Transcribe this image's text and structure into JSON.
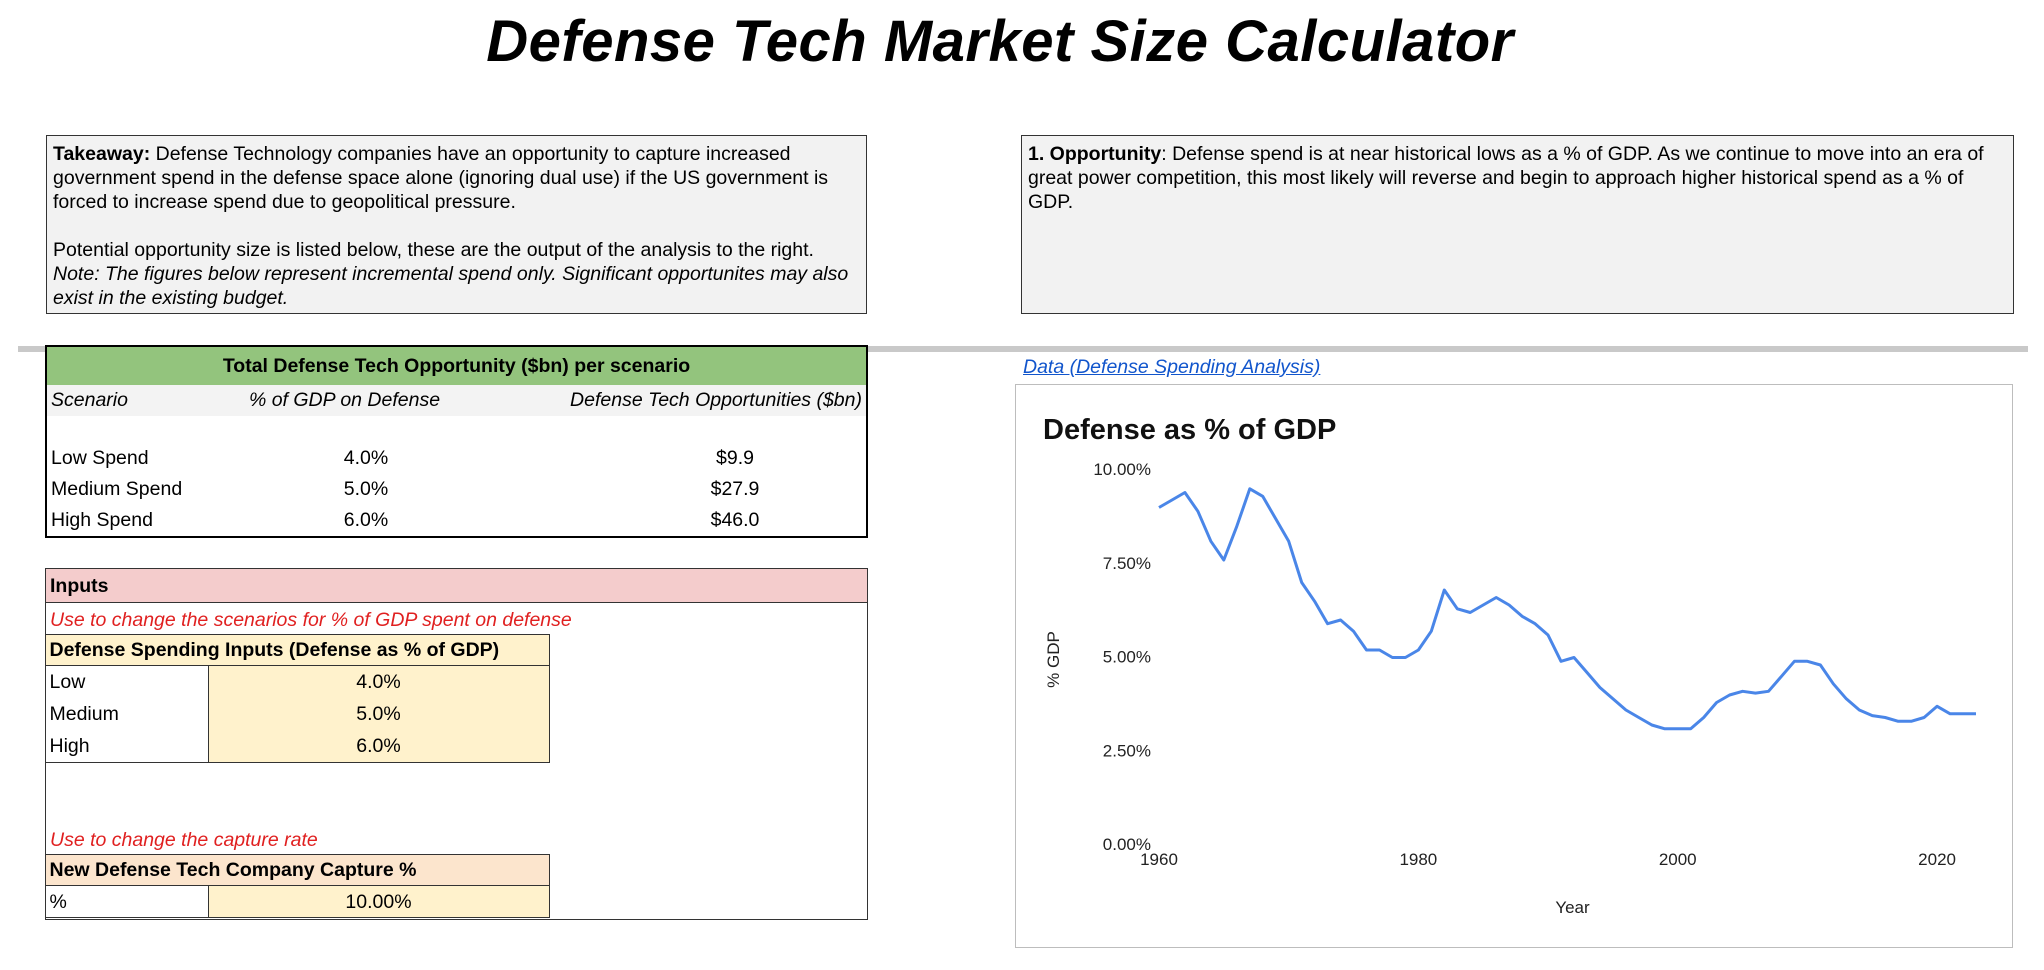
{
  "title": "Defense Tech Market Size Calculator",
  "takeaway": {
    "bold_label": "Takeaway:",
    "text": " Defense Technology companies have an opportunity to capture increased government spend in the defense space alone (ignoring dual use) if the US government is forced to increase spend due to geopolitical pressure.",
    "line2": "Potential opportunity size is listed below, these are the output of the analysis to the right.",
    "note": "Note: The figures below represent incremental spend only. Significant opportunites may also exist in the existing budget."
  },
  "opportunity": {
    "bold_label": "1. Opportunity",
    "text": ": Defense spend is at near historical lows as a % of GDP. As we continue to move into an era of great power competition, this most likely will reverse and begin to approach higher historical spend as a % of GDP."
  },
  "opp_table": {
    "header": "Total Defense Tech Opportunity ($bn) per scenario",
    "columns": [
      "Scenario",
      "% of GDP on Defense",
      "Defense Tech Opportunities ($bn)"
    ],
    "rows": [
      {
        "scenario": "Low Spend",
        "pct": "4.0%",
        "opp": "$9.9"
      },
      {
        "scenario": "Medium Spend",
        "pct": "5.0%",
        "opp": "$27.9"
      },
      {
        "scenario": "High Spend",
        "pct": "6.0%",
        "opp": "$46.0"
      }
    ]
  },
  "inputs": {
    "header": "Inputs",
    "note1": "Use to change the scenarios for % of GDP spent on defense",
    "spending": {
      "header": "Defense Spending Inputs (Defense as % of GDP)",
      "rows": [
        {
          "label": "Low",
          "value": "4.0%"
        },
        {
          "label": "Medium",
          "value": "5.0%"
        },
        {
          "label": "High",
          "value": "6.0%"
        }
      ]
    },
    "note2": "Use to change the capture rate",
    "capture": {
      "header": "New Defense Tech Company Capture %",
      "label": "%",
      "value": "10.00%"
    }
  },
  "data_link": "Data (Defense Spending Analysis)",
  "colors": {
    "line": "#4a86e8",
    "green_header": "#93c47d",
    "pink_header": "#f4cccc",
    "input_fill": "#fff2cc",
    "red_note": "#e02020",
    "link": "#1155cc"
  },
  "chart_data": {
    "type": "line",
    "title": "Defense as % of GDP",
    "xlabel": "Year",
    "ylabel": "% GDP",
    "xlim": [
      1960,
      2023
    ],
    "ylim": [
      0,
      10
    ],
    "x_ticks": [
      "1960",
      "1980",
      "2000",
      "2020"
    ],
    "y_ticks": [
      "0.00%",
      "2.50%",
      "5.00%",
      "7.50%",
      "10.00%"
    ],
    "grid": false,
    "legend": "none",
    "series": [
      {
        "x": [
          1960,
          1961,
          1962,
          1963,
          1964,
          1965,
          1966,
          1967,
          1968,
          1969,
          1970,
          1971,
          1972,
          1973,
          1974,
          1975,
          1976,
          1977,
          1978,
          1979,
          1980,
          1981,
          1982,
          1983,
          1984,
          1985,
          1986,
          1987,
          1988,
          1989,
          1990,
          1991,
          1992,
          1993,
          1994,
          1995,
          1996,
          1997,
          1998,
          1999,
          2000,
          2001,
          2002,
          2003,
          2004,
          2005,
          2006,
          2007,
          2008,
          2009,
          2010,
          2011,
          2012,
          2013,
          2014,
          2015,
          2016,
          2017,
          2018,
          2019,
          2020,
          2021,
          2022,
          2023
        ],
        "values": [
          9.0,
          9.2,
          9.4,
          8.9,
          8.1,
          7.6,
          8.5,
          9.5,
          9.3,
          8.7,
          8.1,
          7.0,
          6.5,
          5.9,
          6.0,
          5.7,
          5.2,
          5.2,
          5.0,
          5.0,
          5.2,
          5.7,
          6.8,
          6.3,
          6.2,
          6.4,
          6.6,
          6.4,
          6.1,
          5.9,
          5.6,
          4.9,
          5.0,
          4.6,
          4.2,
          3.9,
          3.6,
          3.4,
          3.2,
          3.1,
          3.1,
          3.1,
          3.4,
          3.8,
          4.0,
          4.1,
          4.05,
          4.1,
          4.5,
          4.9,
          4.9,
          4.8,
          4.3,
          3.9,
          3.6,
          3.45,
          3.4,
          3.3,
          3.3,
          3.4,
          3.7,
          3.5,
          3.5,
          3.5
        ]
      }
    ]
  }
}
